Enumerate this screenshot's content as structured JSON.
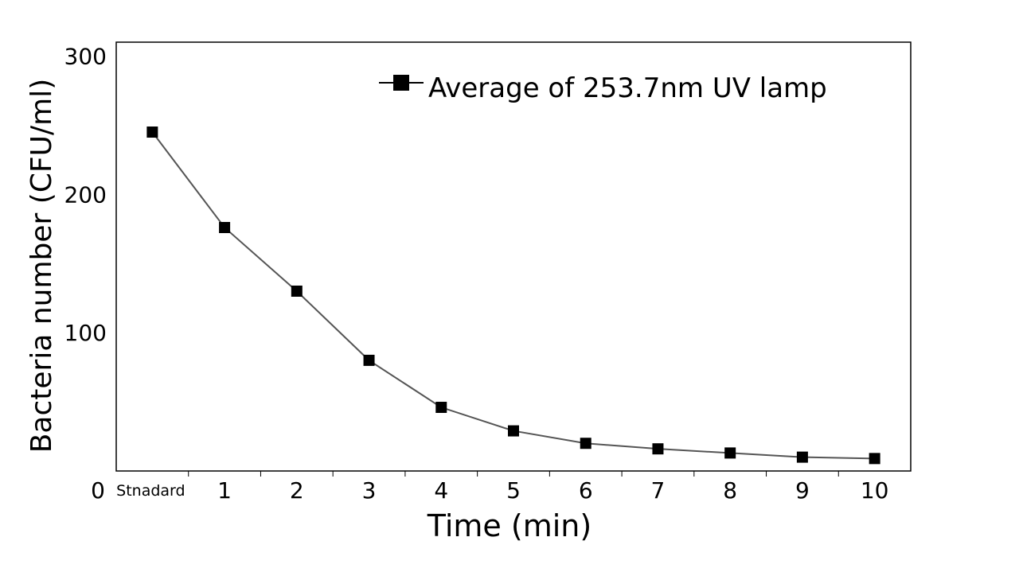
{
  "chart_data": {
    "type": "line",
    "categories": [
      "Stnadard",
      "1",
      "2",
      "3",
      "4",
      "5",
      "6",
      "7",
      "8",
      "9",
      "10"
    ],
    "series": [
      {
        "name": "Average of 253.7nm UV lamp",
        "values": [
          245,
          176,
          130,
          80,
          46,
          29,
          20,
          16,
          13,
          10,
          9
        ],
        "color": "#555555",
        "marker": "square",
        "marker_color": "#000000"
      }
    ],
    "xlabel": "Time (min)",
    "ylabel": "Bacteria number (CFU/ml)",
    "ylim": [
      0,
      310
    ],
    "yticks": [
      0,
      100,
      200,
      300
    ],
    "grid": false,
    "legend_position": "top-right"
  }
}
